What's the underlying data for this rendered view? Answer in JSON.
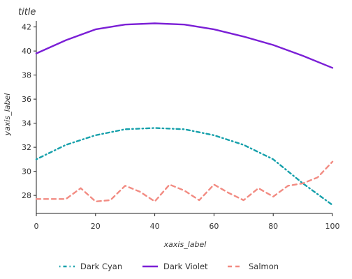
{
  "chart_data": {
    "type": "line",
    "title": "title",
    "xlabel": "xaxis_label",
    "ylabel": "yaxis_label",
    "xlim": [
      0,
      100
    ],
    "ylim": [
      26.5,
      42.5
    ],
    "x_ticks": [
      0,
      20,
      40,
      60,
      80,
      100
    ],
    "y_ticks": [
      28,
      30,
      32,
      34,
      36,
      38,
      40,
      42
    ],
    "grid": false,
    "legend_position": "bottom",
    "series": [
      {
        "name": "Dark Cyan",
        "color": "#16a0ab",
        "dash": "dashdot",
        "x": [
          0,
          10,
          20,
          30,
          40,
          50,
          60,
          70,
          80,
          90,
          100
        ],
        "y": [
          31.0,
          32.2,
          33.0,
          33.5,
          33.6,
          33.5,
          33.0,
          32.2,
          31.0,
          29.0,
          27.2
        ]
      },
      {
        "name": "Dark Violet",
        "color": "#7b1fd6",
        "dash": "solid",
        "x": [
          0,
          10,
          20,
          30,
          40,
          50,
          60,
          70,
          80,
          90,
          100
        ],
        "y": [
          39.8,
          40.9,
          41.8,
          42.2,
          42.3,
          42.2,
          41.8,
          41.2,
          40.5,
          39.6,
          38.6
        ]
      },
      {
        "name": "Salmon",
        "color": "#f28b82",
        "dash": "dashed",
        "x": [
          0,
          5,
          10,
          15,
          20,
          25,
          30,
          35,
          40,
          45,
          50,
          55,
          60,
          65,
          70,
          75,
          80,
          85,
          90,
          95,
          100
        ],
        "y": [
          27.7,
          27.7,
          27.7,
          28.6,
          27.5,
          27.6,
          28.8,
          28.3,
          27.5,
          28.9,
          28.4,
          27.6,
          28.9,
          28.2,
          27.6,
          28.6,
          27.9,
          28.8,
          29.0,
          29.5,
          30.8
        ]
      }
    ]
  }
}
